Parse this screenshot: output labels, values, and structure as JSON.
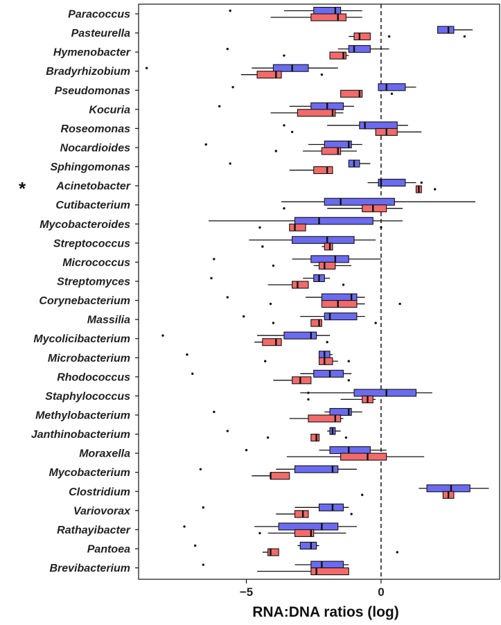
{
  "chart_data": {
    "type": "boxplot",
    "orientation": "horizontal",
    "xlabel": "RNA:DNA ratios (log)",
    "xlim": [
      -9.0,
      4.4
    ],
    "xticks": [
      -5,
      0
    ],
    "reference_line_x": 0,
    "grid": false,
    "legend": "none",
    "colors": {
      "blue": "#6b6bf0",
      "red": "#f26a6a",
      "outline": "#111111"
    },
    "marker_symbol": "*",
    "categories": [
      "Paracoccus",
      "Pasteurella",
      "Hymenobacter",
      "Bradyrhizobium",
      "Pseudomonas",
      "Kocuria",
      "Roseomonas",
      "Nocardioides",
      "Sphingomonas",
      "Acinetobacter",
      "Cutibacterium",
      "Mycobacteroides",
      "Streptococcus",
      "Micrococcus",
      "Streptomyces",
      "Corynebacterium",
      "Massilia",
      "Mycolicibacterium",
      "Microbacterium",
      "Rhodococcus",
      "Staphylococcus",
      "Methylobacterium",
      "Janthinobacterium",
      "Moraxella",
      "Mycobacterium",
      "Clostridium",
      "Variovorax",
      "Rathayibacter",
      "Pantoea",
      "Brevibacterium"
    ],
    "marked_categories": [
      "Acinetobacter"
    ],
    "series": [
      {
        "color": "blue",
        "boxes": [
          [
            -3.6,
            -2.5,
            -1.7,
            -1.5,
            -0.7
          ],
          [
            2.1,
            2.1,
            2.5,
            2.7,
            3.4
          ],
          [
            -1.6,
            -1.2,
            -1.0,
            -0.4,
            0.3
          ],
          [
            -4.8,
            -4.0,
            -3.3,
            -2.7,
            -1.6
          ],
          [
            -0.1,
            -0.1,
            0.2,
            0.9,
            1.3
          ],
          [
            -3.4,
            -2.6,
            -2.0,
            -1.4,
            -1.0
          ],
          [
            -2.0,
            -0.8,
            -0.6,
            0.6,
            1.0
          ],
          [
            -2.7,
            -2.1,
            -1.2,
            -1.1,
            -0.7
          ],
          [
            -1.2,
            -1.2,
            -1.0,
            -0.8,
            -0.4
          ],
          [
            -0.5,
            -0.1,
            0.0,
            0.9,
            1.3
          ],
          [
            -3.7,
            -2.1,
            -1.5,
            0.5,
            3.5
          ],
          [
            -6.4,
            -3.2,
            -2.3,
            -0.3,
            0.8
          ],
          [
            -4.9,
            -3.3,
            -2.0,
            -1.0,
            -0.2
          ],
          [
            -3.3,
            -2.6,
            -1.7,
            -1.2,
            0.0
          ],
          [
            -2.9,
            -2.5,
            -2.3,
            -2.1,
            -1.9
          ],
          [
            -2.8,
            -2.2,
            -1.1,
            -0.9,
            -0.6
          ],
          [
            -3.0,
            -2.1,
            -1.9,
            -0.9,
            -0.6
          ],
          [
            -4.6,
            -3.6,
            -2.6,
            -2.4,
            -1.9
          ],
          [
            -2.3,
            -2.3,
            -2.1,
            -1.9,
            -1.8
          ],
          [
            -3.0,
            -2.5,
            -1.9,
            -1.4,
            -1.1
          ],
          [
            -3.0,
            -1.0,
            0.2,
            1.3,
            1.9
          ],
          [
            -2.1,
            -1.9,
            -1.2,
            -1.1,
            -0.7
          ],
          [
            -2.0,
            -1.9,
            -1.8,
            -1.7,
            -1.5
          ],
          [
            -2.3,
            -1.9,
            -1.2,
            -0.4,
            0.2
          ],
          [
            -3.9,
            -3.2,
            -1.8,
            -1.6,
            -0.9
          ],
          [
            1.4,
            1.7,
            2.6,
            3.3,
            4.0
          ],
          [
            -3.2,
            -2.3,
            -1.8,
            -1.4,
            -1.2
          ],
          [
            -4.7,
            -3.8,
            -2.2,
            -1.6,
            -0.9
          ],
          [
            -3.1,
            -3.0,
            -2.6,
            -2.4,
            -2.3
          ],
          [
            -3.2,
            -2.6,
            -2.2,
            -1.4,
            -1.2
          ]
        ],
        "outliers": [
          [
            -5.6
          ],
          [],
          [
            -5.7
          ],
          [
            -8.7
          ],
          [
            -5.5
          ],
          [
            -6.0
          ],
          [
            -3.6
          ],
          [
            -6.5
          ],
          [
            -5.6
          ],
          [
            1.5
          ],
          [],
          [],
          [],
          [
            -6.2
          ],
          [
            -6.3
          ],
          [
            -5.7
          ],
          [
            -5.1
          ],
          [
            -8.1
          ],
          [
            -7.2
          ],
          [
            -7.0
          ],
          [
            -2.7
          ],
          [
            -6.2
          ],
          [
            -5.7
          ],
          [
            -5.0
          ],
          [
            -6.7
          ],
          [],
          [
            -6.6
          ],
          [
            -7.3
          ],
          [
            -6.9
          ],
          [
            -6.6
          ]
        ]
      },
      {
        "color": "red",
        "boxes": [
          [
            -4.1,
            -2.6,
            -1.6,
            -1.3,
            -0.7
          ],
          [
            -1.2,
            -1.0,
            -0.8,
            -0.4,
            -0.4
          ],
          [
            -1.9,
            -1.9,
            -1.4,
            -1.3,
            -1.2
          ],
          [
            -5.2,
            -4.6,
            -3.9,
            -3.7,
            -3.7
          ],
          [
            -1.5,
            -1.5,
            -0.8,
            -0.7,
            -0.7
          ],
          [
            -4.1,
            -3.1,
            -1.8,
            -1.7,
            -1.4
          ],
          [
            -0.2,
            -0.2,
            0.2,
            0.6,
            1.5
          ],
          [
            -2.9,
            -2.2,
            -1.6,
            -1.5,
            -0.9
          ],
          [
            -3.4,
            -2.5,
            -2.0,
            -1.8,
            -1.8
          ],
          [
            1.3,
            1.3,
            1.4,
            1.5,
            1.5
          ],
          [
            -2.0,
            -0.7,
            -0.3,
            0.2,
            0.8
          ],
          [
            -3.4,
            -3.4,
            -3.2,
            -2.8,
            -2.8
          ],
          [
            -2.2,
            -2.1,
            -1.9,
            -1.8,
            -1.8
          ],
          [
            -2.5,
            -2.3,
            -2.1,
            -1.7,
            -1.1
          ],
          [
            -4.2,
            -3.3,
            -3.1,
            -2.7,
            -2.7
          ],
          [
            -2.2,
            -2.2,
            -1.6,
            -0.9,
            -0.6
          ],
          [
            -2.6,
            -2.6,
            -2.3,
            -2.2,
            -2.2
          ],
          [
            -4.7,
            -4.4,
            -3.9,
            -3.7,
            -3.7
          ],
          [
            -2.3,
            -2.3,
            -2.1,
            -1.8,
            -1.6
          ],
          [
            -4.0,
            -3.3,
            -3.0,
            -2.6,
            -2.6
          ],
          [
            -1.5,
            -0.7,
            -0.5,
            -0.3,
            -0.2
          ],
          [
            -3.4,
            -2.7,
            -1.7,
            -1.5,
            -1.4
          ],
          [
            -2.6,
            -2.6,
            -2.4,
            -2.3,
            -2.3
          ],
          [
            -3.5,
            -1.5,
            -0.5,
            0.2,
            1.6
          ],
          [
            -4.8,
            -4.1,
            -4.1,
            -3.4,
            -3.4
          ],
          [
            2.3,
            2.3,
            2.5,
            2.7,
            2.7
          ],
          [
            -3.9,
            -3.2,
            -2.9,
            -2.7,
            -2.7
          ],
          [
            -4.2,
            -3.2,
            -2.6,
            -2.5,
            -1.3
          ],
          [
            -4.4,
            -4.2,
            -4.1,
            -3.8,
            -3.8
          ],
          [
            -4.6,
            -2.6,
            -2.4,
            -1.2,
            -1.2
          ]
        ],
        "outliers": [
          [],
          [
            0.3,
            3.1
          ],
          [
            -3.6
          ],
          [
            -2.2
          ],
          [
            0.4
          ],
          [],
          [
            -3.3
          ],
          [
            -3.9
          ],
          [],
          [
            2.0
          ],
          [
            -3.6
          ],
          [
            -4.5,
            0.0
          ],
          [
            -4.4
          ],
          [
            -4.0
          ],
          [
            -1.4
          ],
          [
            -4.1,
            0.7
          ],
          [
            -4.0,
            -0.2
          ],
          [
            -2.0
          ],
          [
            -4.3,
            -1.2
          ],
          [
            -1.2
          ],
          [
            -2.7
          ],
          [],
          [
            -4.2,
            -1.3
          ],
          [],
          [],
          [
            -0.7
          ],
          [
            -1.1
          ],
          [
            -4.5
          ],
          [
            0.6
          ],
          []
        ]
      }
    ]
  }
}
